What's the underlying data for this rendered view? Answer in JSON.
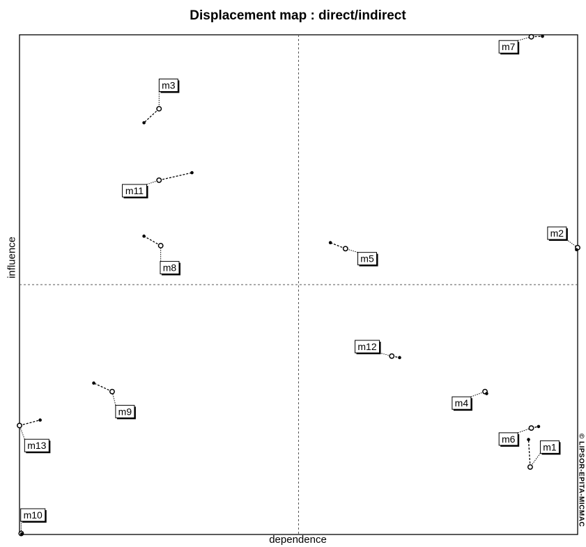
{
  "chart_data": {
    "type": "scatter",
    "title": "Displacement map :  direct/indirect",
    "xlabel": "dependence",
    "ylabel": "influence",
    "credit": "© LIPSOR-EPITA-MICMAC",
    "xlim": [
      0,
      100
    ],
    "ylim": [
      0,
      100
    ],
    "quadrant_lines": {
      "x": 50,
      "y": 50
    },
    "grid": false,
    "legend": "none",
    "colors": {
      "marks": "#000000",
      "axes": "#000000",
      "quadrant": "#555555"
    },
    "points": [
      {
        "name": "m1",
        "direct": [
          91.5,
          13.5
        ],
        "indirect": [
          91.2,
          19.0
        ],
        "label_pos": [
          95.0,
          17.5
        ]
      },
      {
        "name": "m2",
        "direct": [
          100.0,
          57.4
        ],
        "indirect": [
          99.8,
          57.0
        ],
        "label_pos": [
          96.3,
          60.3
        ]
      },
      {
        "name": "m3",
        "direct": [
          25.0,
          85.2
        ],
        "indirect": [
          22.3,
          82.4
        ],
        "label_pos": [
          26.7,
          89.9
        ]
      },
      {
        "name": "m4",
        "direct": [
          83.4,
          28.6
        ],
        "indirect": [
          83.7,
          28.2
        ],
        "label_pos": [
          79.2,
          26.3
        ]
      },
      {
        "name": "m5",
        "direct": [
          58.4,
          57.2
        ],
        "indirect": [
          55.7,
          58.4
        ],
        "label_pos": [
          62.3,
          55.2
        ]
      },
      {
        "name": "m6",
        "direct": [
          91.7,
          21.3
        ],
        "indirect": [
          93.0,
          21.6
        ],
        "label_pos": [
          87.6,
          19.1
        ]
      },
      {
        "name": "m7",
        "direct": [
          91.7,
          99.6
        ],
        "indirect": [
          93.7,
          99.7
        ],
        "label_pos": [
          87.6,
          97.6
        ]
      },
      {
        "name": "m8",
        "direct": [
          25.3,
          57.8
        ],
        "indirect": [
          22.3,
          59.7
        ],
        "label_pos": [
          26.9,
          53.4
        ]
      },
      {
        "name": "m9",
        "direct": [
          16.6,
          28.6
        ],
        "indirect": [
          13.3,
          30.3
        ],
        "label_pos": [
          18.9,
          24.6
        ]
      },
      {
        "name": "m10",
        "direct": [
          0.3,
          0.2
        ],
        "indirect": [
          0.4,
          0.1
        ],
        "label_pos": [
          2.4,
          3.9
        ]
      },
      {
        "name": "m11",
        "direct": [
          25.0,
          70.9
        ],
        "indirect": [
          30.9,
          72.4
        ],
        "label_pos": [
          20.6,
          68.8
        ]
      },
      {
        "name": "m12",
        "direct": [
          66.7,
          35.7
        ],
        "indirect": [
          68.1,
          35.4
        ],
        "label_pos": [
          62.3,
          37.6
        ]
      },
      {
        "name": "m13",
        "direct": [
          0.0,
          21.8
        ],
        "indirect": [
          3.7,
          22.9
        ],
        "label_pos": [
          3.1,
          17.8
        ]
      }
    ]
  }
}
